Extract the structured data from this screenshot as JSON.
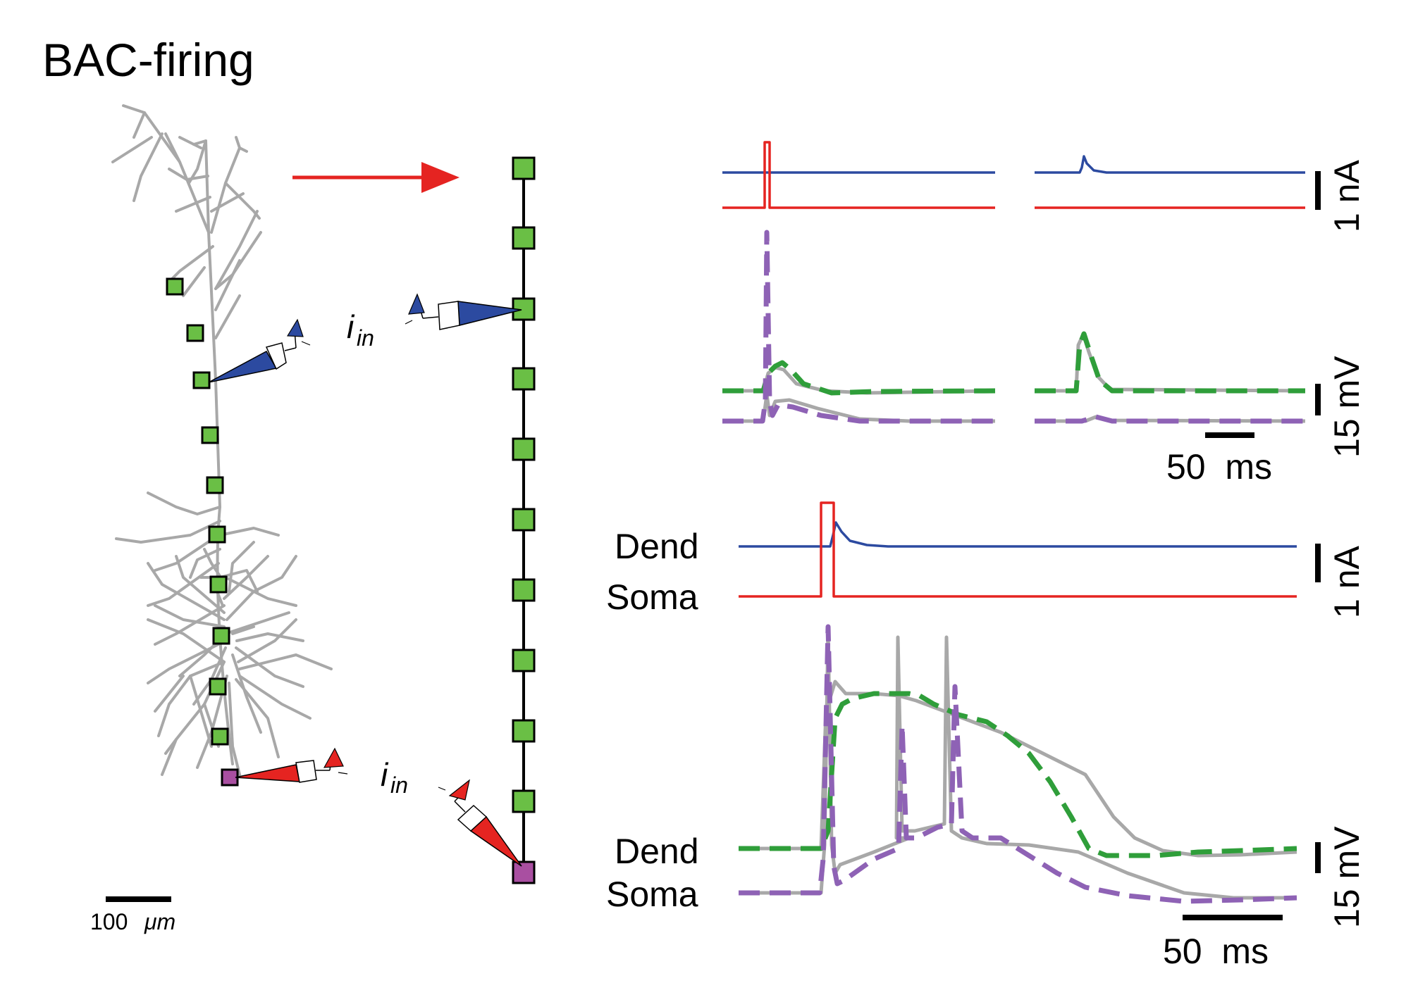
{
  "title": "BAC-firing",
  "morphology": {
    "scale_value": "100",
    "scale_unit": "μm",
    "colors": {
      "dendrite": "#a8a8a8",
      "compartment": "#6abf45",
      "soma_compartment": "#a94fa1"
    }
  },
  "input_labels": {
    "dend": {
      "main": "i",
      "sub": "in",
      "color": "#2c4aa0"
    },
    "soma": {
      "main": "i",
      "sub": "in",
      "color": "#e52421"
    }
  },
  "top_panel": {
    "current_scale": "1 nA",
    "voltage_scale": "15 mV",
    "time_scale": "50  ms"
  },
  "bottom_panel": {
    "dend_label": "Dend",
    "soma_label": "Soma",
    "dend_v_label": "Dend",
    "soma_v_label": "Soma",
    "current_scale": "1 nA",
    "voltage_scale": "15 mV",
    "time_scale": "50  ms"
  },
  "colors": {
    "dend_input": "#2c4aa0",
    "soma_input": "#e52421",
    "dend_voltage": "#2f9e3a",
    "soma_voltage": "#8e62b5",
    "full_model": "#a8a8a8",
    "arrow": "#e52421"
  }
}
